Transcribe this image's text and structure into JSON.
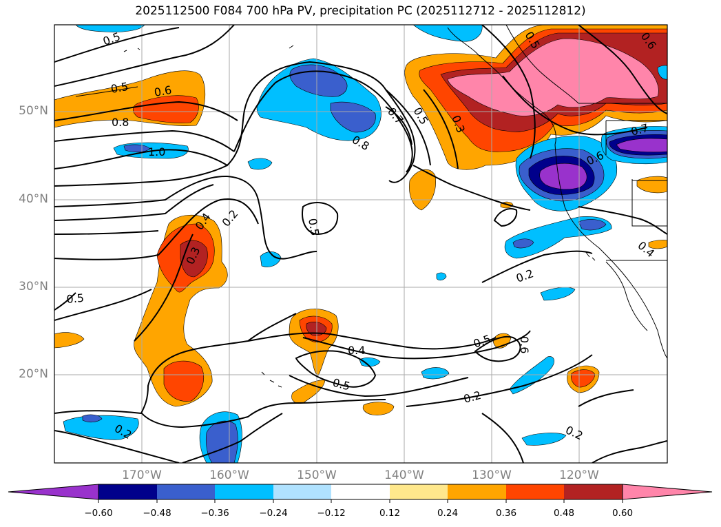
{
  "title": "2025112500 F084 700 hPa PV, precipitation PC (2025112712 - 2025112812)",
  "lat_labels": [
    "50°N",
    "40°N",
    "30°N",
    "20°N"
  ],
  "lon_labels": [
    "170°W",
    "160°W",
    "150°W",
    "140°W",
    "130°W",
    "120°W"
  ],
  "colorbar": {
    "ticks": [
      "−0.60",
      "−0.48",
      "−0.36",
      "−0.24",
      "−0.12",
      "0.12",
      "0.24",
      "0.36",
      "0.48",
      "0.60"
    ],
    "colors": [
      "#9932CC",
      "#00008B",
      "#3A5FCD",
      "#00BFFF",
      "#B0E2FF",
      "#FFFFFF",
      "#FFE88C",
      "#FFA500",
      "#FF4500",
      "#B22222",
      "#FF85AA"
    ]
  },
  "contour_labels": [
    {
      "text": "0.5"
    },
    {
      "text": "0.5"
    },
    {
      "text": "0.6"
    },
    {
      "text": "0.8"
    },
    {
      "text": "1.0"
    },
    {
      "text": "0.7"
    },
    {
      "text": "0.5"
    },
    {
      "text": "0.8"
    },
    {
      "text": "0.3"
    },
    {
      "text": "0.5"
    },
    {
      "text": "0.6"
    },
    {
      "text": "0.7"
    },
    {
      "text": "0.6"
    },
    {
      "text": "0.4"
    },
    {
      "text": "0.2"
    },
    {
      "text": "0.3"
    },
    {
      "text": "0.5"
    },
    {
      "text": "0.4"
    },
    {
      "text": "0.2"
    },
    {
      "text": "0.5"
    },
    {
      "text": "0.4"
    },
    {
      "text": "0.5"
    },
    {
      "text": "0.5"
    },
    {
      "text": "0.6"
    },
    {
      "text": "0.2"
    },
    {
      "text": "0.2"
    },
    {
      "text": "0.2"
    }
  ]
}
